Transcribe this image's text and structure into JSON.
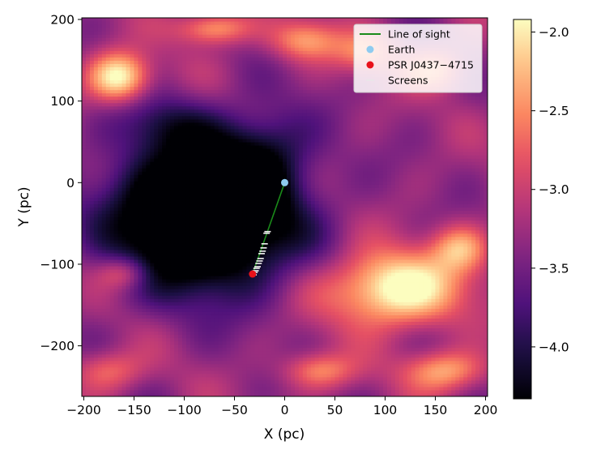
{
  "chart_data": {
    "type": "heatmap",
    "title": "",
    "xlabel": "X (pc)",
    "ylabel": "Y (pc)",
    "xlim": [
      -202,
      202
    ],
    "ylim": [
      -262,
      202
    ],
    "x_ticks": [
      -200,
      -150,
      -100,
      -50,
      0,
      50,
      100,
      150,
      200
    ],
    "x_tick_labels": [
      "−200",
      "−150",
      "−100",
      "−50",
      "0",
      "50",
      "100",
      "150",
      "200"
    ],
    "y_ticks": [
      200,
      100,
      0,
      -100,
      -200
    ],
    "y_tick_labels": [
      "200",
      "100",
      "0",
      "−100",
      "−200"
    ],
    "colormap": "magma",
    "colorbar": {
      "range": [
        -4.33,
        -1.92
      ],
      "ticks": [
        -2.0,
        -2.5,
        -3.0,
        -3.5,
        -4.0
      ],
      "tick_labels": [
        "−2.0",
        "−2.5",
        "−3.0",
        "−3.5",
        "−4.0"
      ]
    },
    "field_description_blobs": [
      {
        "x": -80,
        "y": -40,
        "sx": 85,
        "sy": 85,
        "a": -2.4
      },
      {
        "x": -20,
        "y": 40,
        "sx": 45,
        "sy": 55,
        "a": -0.6
      },
      {
        "x": -120,
        "y": 70,
        "sx": 50,
        "sy": 35,
        "a": -0.5
      },
      {
        "x": -165,
        "y": 130,
        "sx": 30,
        "sy": 30,
        "a": 1.5
      },
      {
        "x": -70,
        "y": 190,
        "sx": 35,
        "sy": 20,
        "a": 1.0
      },
      {
        "x": 20,
        "y": 175,
        "sx": 35,
        "sy": 25,
        "a": 0.9
      },
      {
        "x": 80,
        "y": 160,
        "sx": 30,
        "sy": 25,
        "a": 0.7
      },
      {
        "x": 150,
        "y": 140,
        "sx": 30,
        "sy": 25,
        "a": 0.8
      },
      {
        "x": 110,
        "y": -130,
        "sx": 65,
        "sy": 45,
        "a": 1.6
      },
      {
        "x": 175,
        "y": -80,
        "sx": 28,
        "sy": 28,
        "a": 0.9
      },
      {
        "x": 160,
        "y": -230,
        "sx": 40,
        "sy": 25,
        "a": 1.0
      },
      {
        "x": 35,
        "y": -230,
        "sx": 35,
        "sy": 22,
        "a": 0.8
      },
      {
        "x": -160,
        "y": -110,
        "sx": 25,
        "sy": 20,
        "a": 0.7
      },
      {
        "x": -175,
        "y": -230,
        "sx": 35,
        "sy": 25,
        "a": 0.7
      }
    ],
    "series": [
      {
        "name": "Line of sight",
        "kind": "line",
        "color": "#1a8a1a",
        "x": [
          0,
          -32
        ],
        "y": [
          0,
          -112
        ]
      },
      {
        "name": "Earth",
        "kind": "point",
        "color": "#8ecbf0",
        "x": [
          0
        ],
        "y": [
          0
        ]
      },
      {
        "name": "PSR J0437−4715",
        "kind": "point",
        "color": "#e8121a",
        "x": [
          -32
        ],
        "y": [
          -112
        ]
      },
      {
        "name": "Screens",
        "kind": "dash",
        "color": "#f5f5f5",
        "x": [
          -17,
          -18,
          -20,
          -21,
          -22,
          -23,
          -24,
          -25,
          -26,
          -27,
          -28,
          -29,
          -30,
          -31
        ],
        "y": [
          -60,
          -62,
          -75,
          -80,
          -84,
          -87,
          -93,
          -96,
          -99,
          -103,
          -105,
          -108,
          -110,
          -113
        ]
      }
    ],
    "legend": {
      "position": "top-right",
      "entries": [
        "Line of sight",
        "Earth",
        "PSR J0437−4715",
        "Screens"
      ]
    }
  }
}
